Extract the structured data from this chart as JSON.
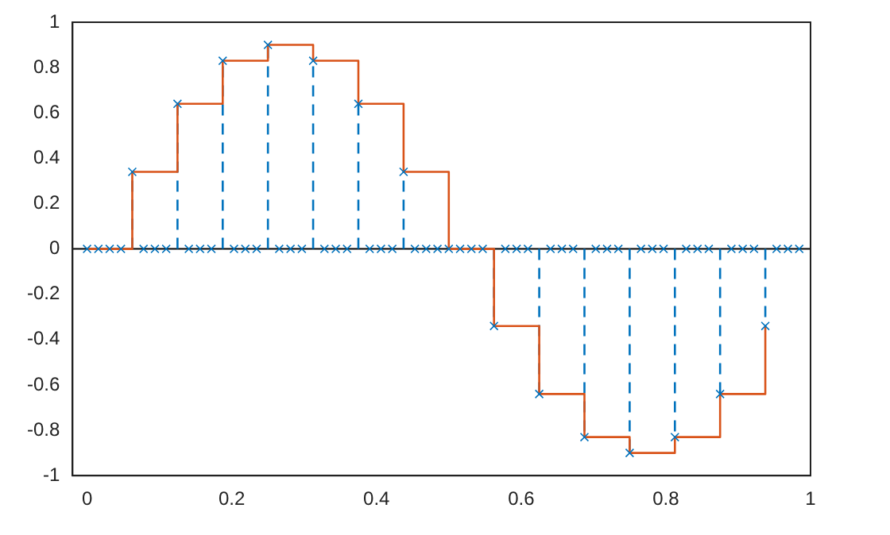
{
  "chart_data": {
    "type": "step",
    "series": [
      {
        "type": "lollipop",
        "color": "#0072bd",
        "marker": "cross",
        "line_style": "dashed",
        "x": [
          0,
          0.015625,
          0.03125,
          0.046875,
          0.0625,
          0.078125,
          0.09375,
          0.109375,
          0.125,
          0.140625,
          0.15625,
          0.171875,
          0.1875,
          0.203125,
          0.21875,
          0.234375,
          0.25,
          0.265625,
          0.28125,
          0.296875,
          0.3125,
          0.328125,
          0.34375,
          0.359375,
          0.375,
          0.390625,
          0.40625,
          0.421875,
          0.4375,
          0.453125,
          0.46875,
          0.484375,
          0.5,
          0.515625,
          0.53125,
          0.546875,
          0.5625,
          0.578125,
          0.59375,
          0.609375,
          0.625,
          0.640625,
          0.65625,
          0.671875,
          0.6875,
          0.703125,
          0.71875,
          0.734375,
          0.75,
          0.765625,
          0.78125,
          0.796875,
          0.8125,
          0.828125,
          0.84375,
          0.859375,
          0.875,
          0.890625,
          0.90625,
          0.921875,
          0.9375,
          0.953125,
          0.96875,
          0.984375
        ],
        "values": [
          0,
          0,
          0,
          0,
          0.34,
          0,
          0,
          0,
          0.64,
          0,
          0,
          0,
          0.83,
          0,
          0,
          0,
          0.9,
          0,
          0,
          0,
          0.83,
          0,
          0,
          0,
          0.64,
          0,
          0,
          0,
          0.34,
          0,
          0,
          0,
          0,
          0,
          0,
          0,
          -0.34,
          0,
          0,
          0,
          -0.64,
          0,
          0,
          0,
          -0.83,
          0,
          0,
          0,
          -0.9,
          0,
          0,
          0,
          -0.83,
          0,
          0,
          0,
          -0.64,
          0,
          0,
          0,
          -0.34,
          0,
          0,
          0
        ]
      },
      {
        "color": "#d95319",
        "marker": "none",
        "line_style": "solid",
        "x": [
          0,
          0.0625,
          0.125,
          0.1875,
          0.25,
          0.3125,
          0.375,
          0.4375,
          0.5,
          0.5625,
          0.625,
          0.6875,
          0.75,
          0.8125,
          0.875,
          0.9375
        ],
        "values": [
          0,
          0.34,
          0.64,
          0.83,
          0.9,
          0.83,
          0.64,
          0.34,
          0,
          -0.34,
          -0.64,
          -0.83,
          -0.9,
          -0.83,
          -0.64,
          -0.34
        ]
      }
    ],
    "xlim": [
      -0.02,
      1
    ],
    "xticks": [
      0,
      0.2,
      0.4,
      0.6,
      0.8,
      1
    ],
    "ylim": [
      -1,
      1
    ],
    "yticks": [
      -1,
      -0.8,
      -0.6,
      -0.4,
      -0.2,
      0,
      0.2,
      0.4,
      0.6,
      0.8,
      1
    ]
  }
}
